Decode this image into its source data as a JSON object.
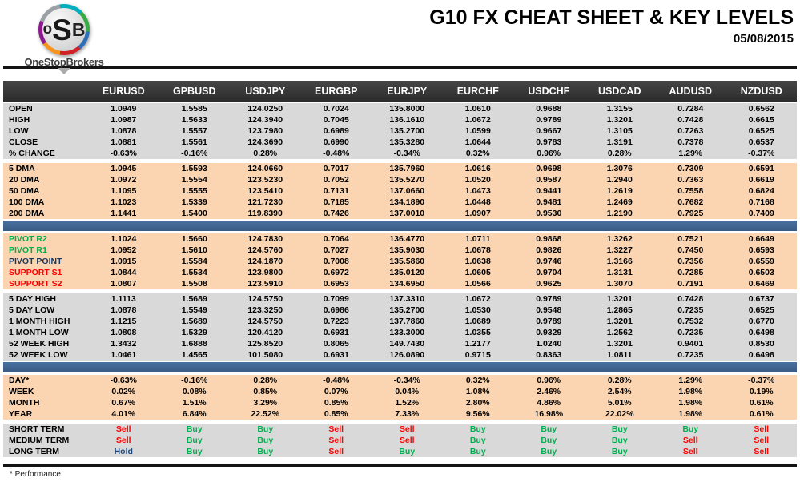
{
  "brand": {
    "logo_o": "o",
    "logo_s": "S",
    "logo_b": "B",
    "name": "OneStopBrokers"
  },
  "header": {
    "title": "G10 FX CHEAT SHEET & KEY LEVELS",
    "date": "05/08/2015"
  },
  "colors": {
    "header_bar": "#333333",
    "section_gray": "#D9D9D9",
    "section_peach": "#FBD5B1",
    "divider_blue": "#3E6492",
    "resistance_green": "#00B050",
    "support_red": "#FF0000",
    "pivot_navy": "#17375D"
  },
  "signal_colors": {
    "Buy": "#00B050",
    "Sell": "#FF0000",
    "Hold": "#1F497D"
  },
  "table": {
    "columns": [
      "EURUSD",
      "GPBUSD",
      "USDJPY",
      "EURGBP",
      "EURJPY",
      "EURCHF",
      "USDCHF",
      "USDCAD",
      "AUDUSD",
      "NZDUSD"
    ],
    "sections": [
      {
        "id": "ohlc",
        "style": "gray",
        "rows": [
          {
            "label": "OPEN",
            "values": [
              "1.0949",
              "1.5585",
              "124.0250",
              "0.7024",
              "135.8000",
              "1.0610",
              "0.9688",
              "1.3155",
              "0.7284",
              "0.6562"
            ]
          },
          {
            "label": "HIGH",
            "values": [
              "1.0987",
              "1.5633",
              "124.3940",
              "0.7045",
              "136.1610",
              "1.0672",
              "0.9789",
              "1.3201",
              "0.7428",
              "0.6615"
            ]
          },
          {
            "label": "LOW",
            "values": [
              "1.0878",
              "1.5557",
              "123.7980",
              "0.6989",
              "135.2700",
              "1.0599",
              "0.9667",
              "1.3105",
              "0.7263",
              "0.6525"
            ]
          },
          {
            "label": "CLOSE",
            "values": [
              "1.0881",
              "1.5561",
              "124.3690",
              "0.6990",
              "135.3280",
              "1.0644",
              "0.9783",
              "1.3191",
              "0.7378",
              "0.6537"
            ]
          },
          {
            "label": "% CHANGE",
            "values": [
              "-0.63%",
              "-0.16%",
              "0.28%",
              "-0.48%",
              "-0.34%",
              "0.32%",
              "0.96%",
              "0.28%",
              "1.29%",
              "-0.37%"
            ]
          }
        ]
      },
      {
        "id": "dma",
        "style": "peach",
        "divider_after": "bar",
        "rows": [
          {
            "label": "5 DMA",
            "values": [
              "1.0945",
              "1.5593",
              "124.0660",
              "0.7017",
              "135.7960",
              "1.0616",
              "0.9698",
              "1.3076",
              "0.7309",
              "0.6591"
            ]
          },
          {
            "label": "20 DMA",
            "values": [
              "1.0972",
              "1.5554",
              "123.5230",
              "0.7052",
              "135.5270",
              "1.0520",
              "0.9587",
              "1.2940",
              "0.7363",
              "0.6619"
            ]
          },
          {
            "label": "50 DMA",
            "values": [
              "1.1095",
              "1.5555",
              "123.5410",
              "0.7131",
              "137.0660",
              "1.0473",
              "0.9441",
              "1.2619",
              "0.7558",
              "0.6824"
            ]
          },
          {
            "label": "100 DMA",
            "values": [
              "1.1023",
              "1.5339",
              "121.7230",
              "0.7185",
              "134.1890",
              "1.0448",
              "0.9481",
              "1.2469",
              "0.7682",
              "0.7168"
            ]
          },
          {
            "label": "200 DMA",
            "values": [
              "1.1441",
              "1.5400",
              "119.8390",
              "0.7426",
              "137.0010",
              "1.0907",
              "0.9530",
              "1.2190",
              "0.7925",
              "0.7409"
            ]
          }
        ]
      },
      {
        "id": "pivots",
        "style": "peach",
        "rows": [
          {
            "label": "PIVOT R2",
            "label_color": "#00B050",
            "values": [
              "1.1024",
              "1.5660",
              "124.7830",
              "0.7064",
              "136.4770",
              "1.0711",
              "0.9868",
              "1.3262",
              "0.7521",
              "0.6649"
            ]
          },
          {
            "label": "PIVOT R1",
            "label_color": "#00B050",
            "values": [
              "1.0952",
              "1.5610",
              "124.5760",
              "0.7027",
              "135.9030",
              "1.0678",
              "0.9826",
              "1.3227",
              "0.7450",
              "0.6593"
            ]
          },
          {
            "label": "PIVOT POINT",
            "label_color": "#17375D",
            "values": [
              "1.0915",
              "1.5584",
              "124.1870",
              "0.7008",
              "135.5860",
              "1.0638",
              "0.9746",
              "1.3166",
              "0.7356",
              "0.6559"
            ]
          },
          {
            "label": "SUPPORT S1",
            "label_color": "#FF0000",
            "values": [
              "1.0844",
              "1.5534",
              "123.9800",
              "0.6972",
              "135.0120",
              "1.0605",
              "0.9704",
              "1.3131",
              "0.7285",
              "0.6503"
            ]
          },
          {
            "label": "SUPPORT S2",
            "label_color": "#FF0000",
            "values": [
              "1.0807",
              "1.5508",
              "123.5910",
              "0.6953",
              "134.6950",
              "1.0566",
              "0.9625",
              "1.3070",
              "0.7191",
              "0.6469"
            ]
          }
        ]
      },
      {
        "id": "ranges",
        "style": "gray",
        "divider_after": "bar",
        "rows": [
          {
            "label": "5 DAY HIGH",
            "values": [
              "1.1113",
              "1.5689",
              "124.5750",
              "0.7099",
              "137.3310",
              "1.0672",
              "0.9789",
              "1.3201",
              "0.7428",
              "0.6737"
            ]
          },
          {
            "label": "5 DAY LOW",
            "values": [
              "1.0878",
              "1.5549",
              "123.3250",
              "0.6986",
              "135.2700",
              "1.0530",
              "0.9548",
              "1.2865",
              "0.7235",
              "0.6525"
            ]
          },
          {
            "label": "1 MONTH HIGH",
            "values": [
              "1.1215",
              "1.5689",
              "124.5750",
              "0.7223",
              "137.7860",
              "1.0689",
              "0.9789",
              "1.3201",
              "0.7532",
              "0.6770"
            ]
          },
          {
            "label": "1 MONTH LOW",
            "values": [
              "1.0808",
              "1.5329",
              "120.4120",
              "0.6931",
              "133.3000",
              "1.0355",
              "0.9329",
              "1.2562",
              "0.7235",
              "0.6498"
            ]
          },
          {
            "label": "52 WEEK HIGH",
            "values": [
              "1.3432",
              "1.6888",
              "125.8520",
              "0.8065",
              "149.7430",
              "1.2177",
              "1.0240",
              "1.3201",
              "0.9401",
              "0.8530"
            ]
          },
          {
            "label": "52 WEEK LOW",
            "values": [
              "1.0461",
              "1.4565",
              "101.5080",
              "0.6931",
              "126.0890",
              "0.9715",
              "0.8363",
              "1.0811",
              "0.7235",
              "0.6498"
            ]
          }
        ]
      },
      {
        "id": "performance",
        "style": "peach",
        "rows": [
          {
            "label": "DAY*",
            "values": [
              "-0.63%",
              "-0.16%",
              "0.28%",
              "-0.48%",
              "-0.34%",
              "0.32%",
              "0.96%",
              "0.28%",
              "1.29%",
              "-0.37%"
            ]
          },
          {
            "label": "WEEK",
            "values": [
              "0.02%",
              "0.08%",
              "0.85%",
              "0.07%",
              "0.04%",
              "1.08%",
              "2.46%",
              "2.54%",
              "1.98%",
              "0.19%"
            ]
          },
          {
            "label": "MONTH",
            "values": [
              "0.67%",
              "1.51%",
              "3.29%",
              "0.85%",
              "1.52%",
              "2.80%",
              "4.86%",
              "5.01%",
              "1.98%",
              "0.61%"
            ]
          },
          {
            "label": "YEAR",
            "values": [
              "4.01%",
              "6.84%",
              "22.52%",
              "0.85%",
              "7.33%",
              "9.56%",
              "16.98%",
              "22.02%",
              "1.98%",
              "0.61%"
            ]
          }
        ]
      },
      {
        "id": "signals",
        "style": "gray",
        "signal": true,
        "rows": [
          {
            "label": "SHORT TERM",
            "values": [
              "Sell",
              "Buy",
              "Buy",
              "Sell",
              "Sell",
              "Buy",
              "Buy",
              "Buy",
              "Buy",
              "Sell"
            ]
          },
          {
            "label": "MEDIUM TERM",
            "values": [
              "Sell",
              "Buy",
              "Buy",
              "Sell",
              "Sell",
              "Buy",
              "Buy",
              "Buy",
              "Sell",
              "Sell"
            ]
          },
          {
            "label": "LONG TERM",
            "values": [
              "Hold",
              "Buy",
              "Buy",
              "Sell",
              "Buy",
              "Buy",
              "Buy",
              "Buy",
              "Sell",
              "Sell"
            ]
          }
        ]
      }
    ]
  },
  "footer": {
    "note": "* Performance"
  }
}
